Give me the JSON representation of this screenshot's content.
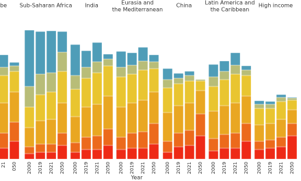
{
  "chart_data": {
    "type": "bar",
    "stacked": true,
    "xlabel": "Year",
    "panels": [
      {
        "title": [
          "be"
        ],
        "categories": [
          "21",
          "050"
        ],
        "series": [
          {
            "color": "#ee2a16",
            "values": [
              16,
              26
            ]
          },
          {
            "color": "#ec6a1c",
            "values": [
              22,
              28
            ]
          },
          {
            "color": "#e9a722",
            "values": [
              44,
              44
            ]
          },
          {
            "color": "#e9c530",
            "values": [
              40,
              30
            ]
          },
          {
            "color": "#b8bd78",
            "values": [
              12,
              8
            ]
          },
          {
            "color": "#4f9db8",
            "values": [
              18,
              5
            ]
          }
        ]
      },
      {
        "title": [
          "Sub-Saharan Africa"
        ],
        "categories": [
          "2000",
          "2019",
          "2021",
          "2050"
        ],
        "series": [
          {
            "color": "#ee2a16",
            "values": [
              8,
              10,
              10,
              20
            ]
          },
          {
            "color": "#ec6a1c",
            "values": [
              10,
              12,
              12,
              18
            ]
          },
          {
            "color": "#e9a722",
            "values": [
              28,
              34,
              36,
              44
            ]
          },
          {
            "color": "#e9c530",
            "values": [
              30,
              38,
              40,
              46
            ]
          },
          {
            "color": "#b8bd78",
            "values": [
              30,
              30,
              28,
              28
            ]
          },
          {
            "color": "#4f9db8",
            "values": [
              82,
              62,
              61,
              30
            ]
          }
        ]
      },
      {
        "title": [
          "India"
        ],
        "categories": [
          "2000",
          "2019",
          "2021",
          "2050"
        ],
        "series": [
          {
            "color": "#ee2a16",
            "values": [
              10,
              14,
              14,
              20
            ]
          },
          {
            "color": "#ec6a1c",
            "values": [
              14,
              18,
              20,
              24
            ]
          },
          {
            "color": "#e9a722",
            "values": [
              38,
              44,
              46,
              48
            ]
          },
          {
            "color": "#e9c530",
            "values": [
              40,
              42,
              46,
              44
            ]
          },
          {
            "color": "#b8bd78",
            "values": [
              20,
              16,
              16,
              10
            ]
          },
          {
            "color": "#4f9db8",
            "values": [
              45,
              24,
              28,
              7
            ]
          }
        ]
      },
      {
        "title": [
          "Eurasia and",
          "the Mediterranean"
        ],
        "categories": [
          "2000",
          "2019",
          "2021",
          "2050"
        ],
        "series": [
          {
            "color": "#ee2a16",
            "values": [
              14,
              16,
              16,
              22
            ]
          },
          {
            "color": "#ec6a1c",
            "values": [
              18,
              22,
              24,
              30
            ]
          },
          {
            "color": "#e9a722",
            "values": [
              44,
              44,
              46,
              46
            ]
          },
          {
            "color": "#e9c530",
            "values": [
              44,
              42,
              44,
              34
            ]
          },
          {
            "color": "#b8bd78",
            "values": [
              14,
              13,
              13,
              10
            ]
          },
          {
            "color": "#4f9db8",
            "values": [
              23,
              18,
              20,
              10
            ]
          }
        ]
      },
      {
        "title": [
          "China"
        ],
        "categories": [
          "2000",
          "2019",
          "2021",
          "2050"
        ],
        "series": [
          {
            "color": "#ee2a16",
            "values": [
              10,
              18,
              20,
              34
            ]
          },
          {
            "color": "#ec6a1c",
            "values": [
              16,
              20,
              22,
              32
            ]
          },
          {
            "color": "#e9a722",
            "values": [
              42,
              40,
              40,
              34
            ]
          },
          {
            "color": "#e9c530",
            "values": [
              36,
              32,
              32,
              14
            ]
          },
          {
            "color": "#b8bd78",
            "values": [
              12,
              8,
              8,
              2
            ]
          },
          {
            "color": "#4f9db8",
            "values": [
              16,
              7,
              6,
              0
            ]
          }
        ]
      },
      {
        "title": [
          "Latin America and",
          "the Caribbean"
        ],
        "categories": [
          "2000",
          "2019",
          "2021",
          "2050"
        ],
        "series": [
          {
            "color": "#ee2a16",
            "values": [
              12,
              16,
              16,
              26
            ]
          },
          {
            "color": "#ec6a1c",
            "values": [
              18,
              20,
              22,
              26
            ]
          },
          {
            "color": "#e9a722",
            "values": [
              40,
              42,
              44,
              40
            ]
          },
          {
            "color": "#e9c530",
            "values": [
              36,
              38,
              42,
              30
            ]
          },
          {
            "color": "#b8bd78",
            "values": [
              14,
              12,
              13,
              8
            ]
          },
          {
            "color": "#4f9db8",
            "values": [
              18,
              15,
              18,
              6
            ]
          }
        ]
      },
      {
        "title": [
          "High income"
        ],
        "categories": [
          "2000",
          "2019",
          "2021",
          "2050"
        ],
        "series": [
          {
            "color": "#ee2a16",
            "values": [
              14,
              16,
              18,
              34
            ]
          },
          {
            "color": "#ec6a1c",
            "values": [
              12,
              12,
              14,
              18
            ]
          },
          {
            "color": "#e9a722",
            "values": [
              24,
              24,
              26,
              20
            ]
          },
          {
            "color": "#e9c530",
            "values": [
              24,
              22,
              26,
              14
            ]
          },
          {
            "color": "#b8bd78",
            "values": [
              6,
              6,
              6,
              3
            ]
          },
          {
            "color": "#4f9db8",
            "values": [
              5,
              4,
              4,
              1
            ]
          }
        ]
      }
    ]
  }
}
